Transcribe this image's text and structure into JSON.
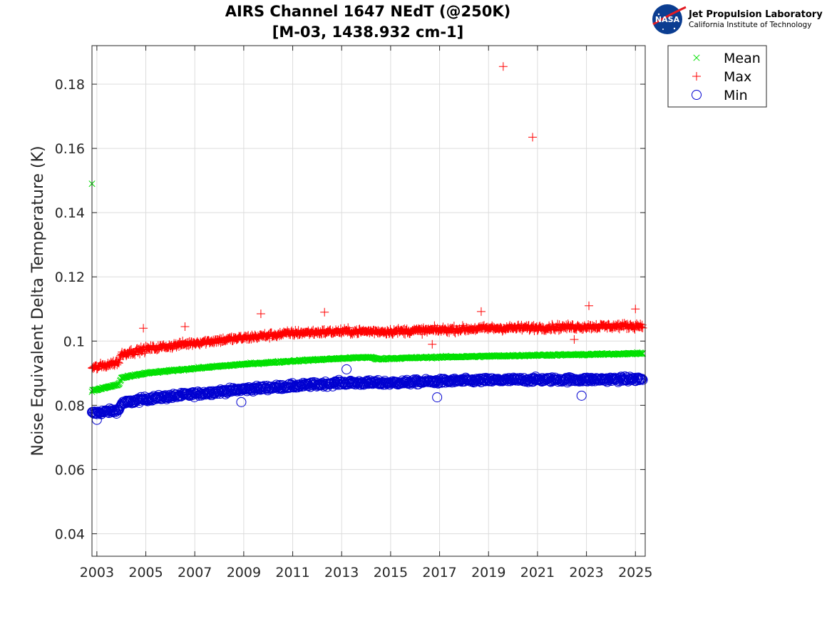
{
  "logo": {
    "emblem_text": "NASA",
    "title": "Jet Propulsion Laboratory",
    "subtitle": "California Institute of Technology"
  },
  "chart_data": {
    "type": "scatter",
    "title": "AIRS Channel 1647 NEdT (@250K)",
    "subtitle": "[M-03, 1438.932 cm-1]",
    "xlabel": "",
    "ylabel": "Noise Equivalent Delta Temperature (K)",
    "xlim": [
      2002.8,
      2025.4
    ],
    "ylim": [
      0.033,
      0.192
    ],
    "xticks": [
      2003,
      2005,
      2007,
      2009,
      2011,
      2013,
      2015,
      2017,
      2019,
      2021,
      2023,
      2025
    ],
    "xtick_labels": [
      "2003",
      "2005",
      "2007",
      "2009",
      "2011",
      "2013",
      "2015",
      "2017",
      "2019",
      "2021",
      "2023",
      "2025"
    ],
    "yticks": [
      0.04,
      0.06,
      0.08,
      0.1,
      0.12,
      0.14,
      0.16,
      0.18
    ],
    "ytick_labels": [
      "0.04",
      "0.06",
      "0.08",
      "0.1",
      "0.12",
      "0.14",
      "0.16",
      "0.18"
    ],
    "grid": true,
    "legend_position": "outside-top-right",
    "colors": {
      "mean": "#00e000",
      "max": "#ff0000",
      "min": "#0000d0"
    },
    "series": [
      {
        "name": "Mean",
        "marker": "x",
        "trend": [
          [
            2002.8,
            0.0845
          ],
          [
            2003.9,
            0.0865
          ],
          [
            2004.0,
            0.0885
          ],
          [
            2005.0,
            0.09
          ],
          [
            2007.0,
            0.0915
          ],
          [
            2009.0,
            0.0928
          ],
          [
            2011.0,
            0.0938
          ],
          [
            2013.0,
            0.0946
          ],
          [
            2014.2,
            0.095
          ],
          [
            2014.4,
            0.0944
          ],
          [
            2015.0,
            0.0946
          ],
          [
            2017.0,
            0.095
          ],
          [
            2019.0,
            0.0953
          ],
          [
            2021.0,
            0.0956
          ],
          [
            2023.0,
            0.0958
          ],
          [
            2025.3,
            0.0962
          ]
        ],
        "outliers": [
          [
            2002.8,
            0.149
          ]
        ]
      },
      {
        "name": "Max",
        "marker": "+",
        "trend": [
          [
            2002.8,
            0.0915
          ],
          [
            2003.9,
            0.0935
          ],
          [
            2004.0,
            0.096
          ],
          [
            2005.0,
            0.0975
          ],
          [
            2007.0,
            0.0995
          ],
          [
            2009.0,
            0.101
          ],
          [
            2011.0,
            0.1025
          ],
          [
            2013.0,
            0.103
          ],
          [
            2015.0,
            0.103
          ],
          [
            2017.0,
            0.1035
          ],
          [
            2019.0,
            0.104
          ],
          [
            2021.0,
            0.1042
          ],
          [
            2023.0,
            0.1045
          ],
          [
            2025.3,
            0.1048
          ]
        ],
        "outliers": [
          [
            2019.6,
            0.1855
          ],
          [
            2020.8,
            0.1635
          ],
          [
            2023.1,
            0.111
          ],
          [
            2025.0,
            0.11
          ],
          [
            2012.3,
            0.109
          ],
          [
            2009.7,
            0.1085
          ],
          [
            2018.7,
            0.1092
          ],
          [
            2016.7,
            0.099
          ],
          [
            2004.9,
            0.104
          ],
          [
            2006.6,
            0.1045
          ],
          [
            2022.5,
            0.1005
          ]
        ]
      },
      {
        "name": "Min",
        "marker": "o",
        "trend": [
          [
            2002.8,
            0.0775
          ],
          [
            2003.9,
            0.0785
          ],
          [
            2004.0,
            0.0805
          ],
          [
            2005.0,
            0.082
          ],
          [
            2007.0,
            0.0835
          ],
          [
            2009.0,
            0.085
          ],
          [
            2011.0,
            0.086
          ],
          [
            2013.0,
            0.087
          ],
          [
            2015.0,
            0.087
          ],
          [
            2017.0,
            0.0875
          ],
          [
            2019.0,
            0.0878
          ],
          [
            2021.0,
            0.088
          ],
          [
            2023.0,
            0.088
          ],
          [
            2025.3,
            0.0882
          ]
        ],
        "outliers": [
          [
            2013.2,
            0.0912
          ],
          [
            2003.0,
            0.0755
          ],
          [
            2016.9,
            0.0825
          ],
          [
            2022.8,
            0.083
          ],
          [
            2008.9,
            0.081
          ]
        ]
      }
    ]
  }
}
